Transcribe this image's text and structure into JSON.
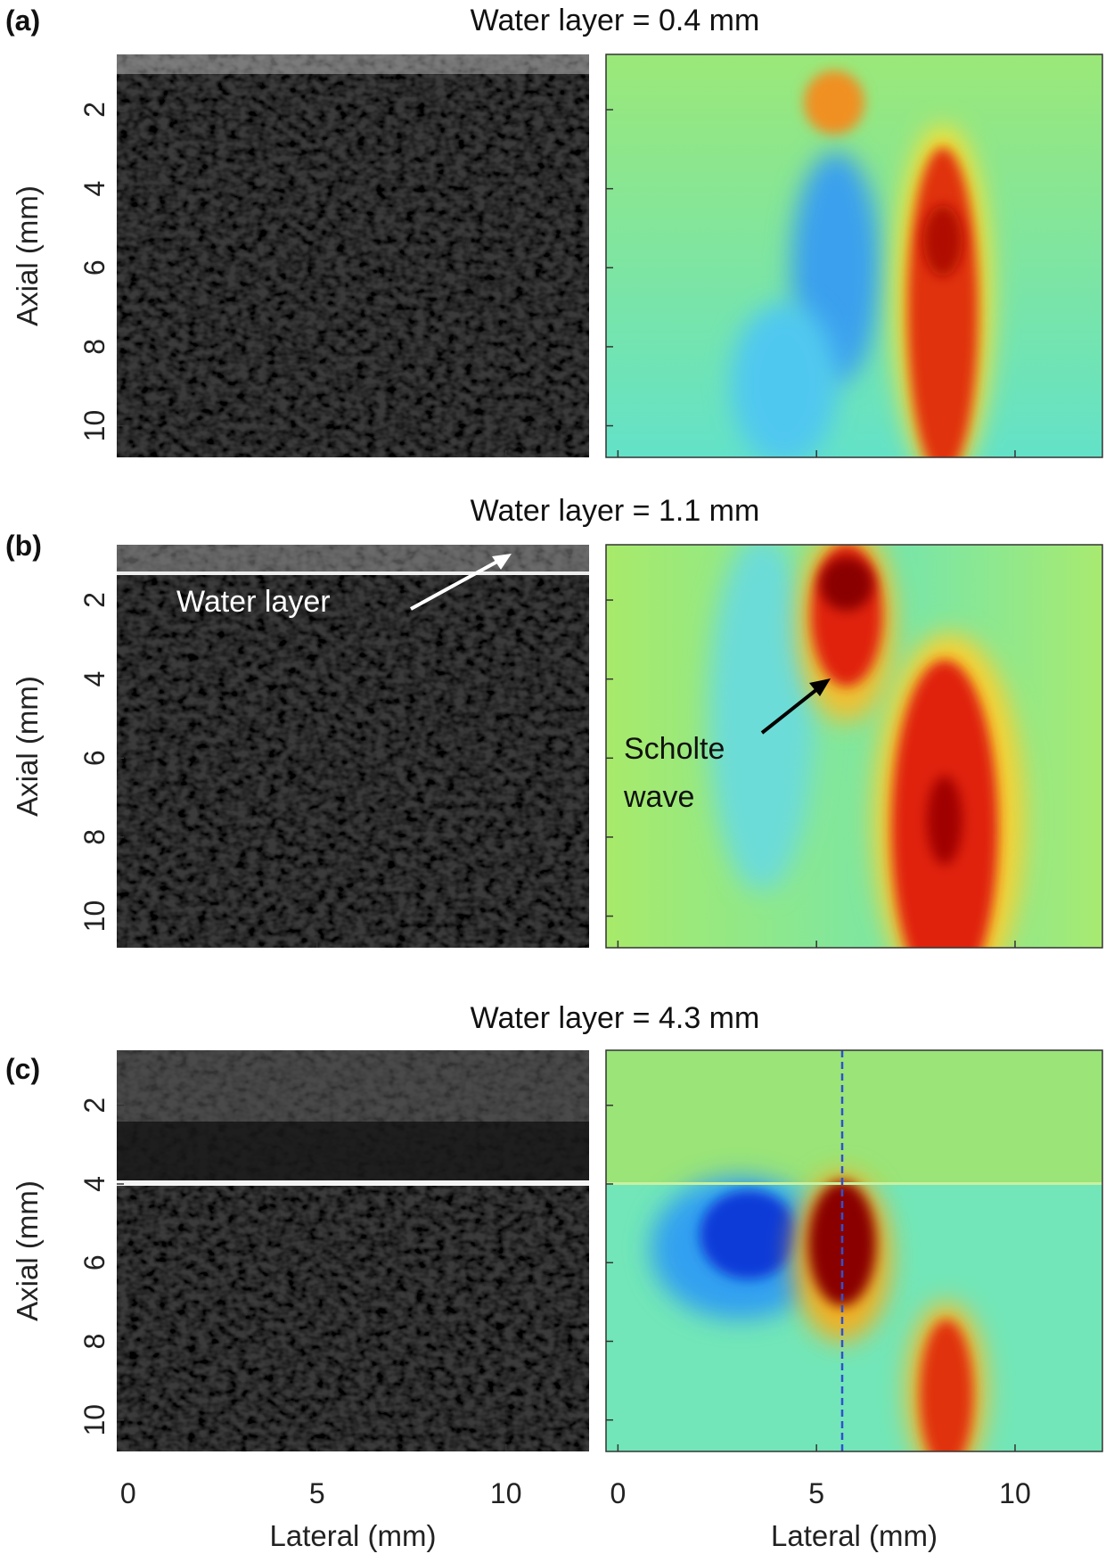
{
  "figure": {
    "xlabel": "Lateral (mm)",
    "ylabel": "Axial (mm)",
    "xlim": [
      -0.3,
      12.2
    ],
    "ylim": [
      0.6,
      10.8
    ],
    "xticks": [
      0,
      5,
      10
    ],
    "yticks": [
      2,
      4,
      6,
      8,
      10
    ],
    "panels": [
      {
        "label": "(a)",
        "title": "Water layer = 0.4 mm"
      },
      {
        "label": "(b)",
        "title": "Water layer =  1.1 mm",
        "annotations": [
          "Water layer",
          "Scholte",
          "wave"
        ]
      },
      {
        "label": "(c)",
        "title": "Water layer =  4.3 mm"
      }
    ]
  }
}
